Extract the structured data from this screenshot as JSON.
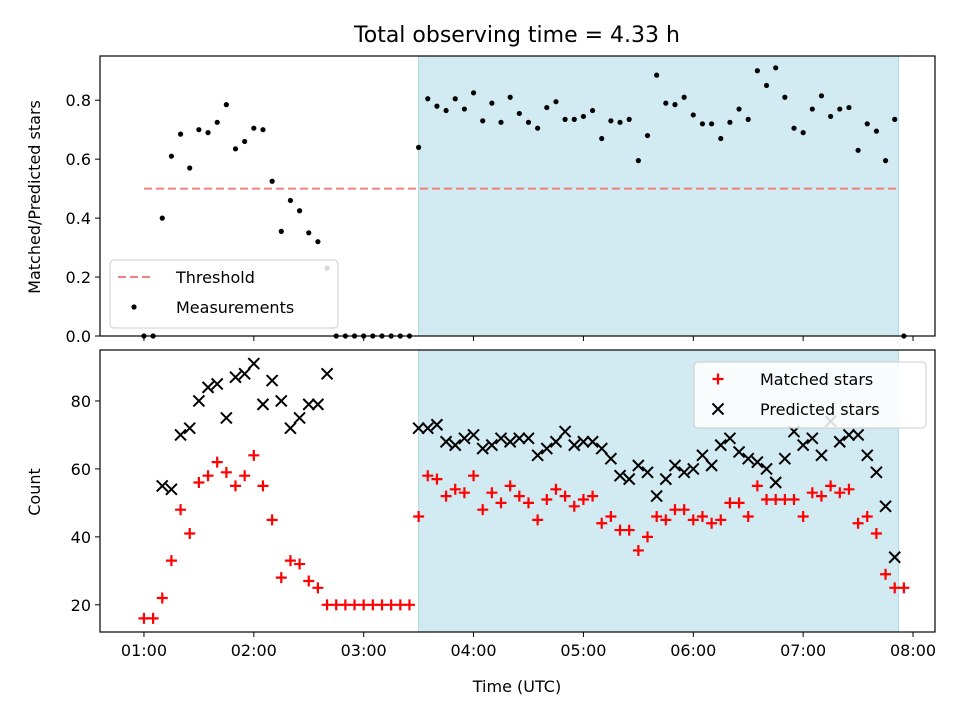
{
  "chart_data": [
    {
      "type": "scatter",
      "title": "Total observing time = 4.33 h",
      "ylabel": "Matched/Predicted stars",
      "xlabel": "",
      "ylim": [
        0,
        0.95
      ],
      "yticks": [
        0.0,
        0.2,
        0.4,
        0.6,
        0.8
      ],
      "ytick_labels": [
        "0.0",
        "0.2",
        "0.4",
        "0.6",
        "0.8"
      ],
      "shaded_interval": [
        "03:30",
        "07:52"
      ],
      "shade_color": "#add8e6",
      "legend_position": "lower-left",
      "threshold": {
        "name": "Threshold",
        "value": 0.5,
        "x_range": [
          "01:00",
          "07:52"
        ],
        "color": "#f08080"
      },
      "series": [
        {
          "name": "Measurements",
          "color": "#000000",
          "marker": "dot",
          "points": [
            [
              "01:00",
              0.0
            ],
            [
              "01:05",
              0.0
            ],
            [
              "01:10",
              0.4
            ],
            [
              "01:15",
              0.61
            ],
            [
              "01:20",
              0.685
            ],
            [
              "01:25",
              0.57
            ],
            [
              "01:30",
              0.7
            ],
            [
              "01:35",
              0.69
            ],
            [
              "01:40",
              0.725
            ],
            [
              "01:45",
              0.785
            ],
            [
              "01:50",
              0.635
            ],
            [
              "01:55",
              0.66
            ],
            [
              "02:00",
              0.705
            ],
            [
              "02:05",
              0.7
            ],
            [
              "02:10",
              0.525
            ],
            [
              "02:15",
              0.355
            ],
            [
              "02:20",
              0.46
            ],
            [
              "02:25",
              0.425
            ],
            [
              "02:30",
              0.35
            ],
            [
              "02:35",
              0.32
            ],
            [
              "02:40",
              0.23
            ],
            [
              "02:45",
              0.0
            ],
            [
              "02:50",
              0.0
            ],
            [
              "02:55",
              0.0
            ],
            [
              "03:00",
              0.0
            ],
            [
              "03:05",
              0.0
            ],
            [
              "03:10",
              0.0
            ],
            [
              "03:15",
              0.0
            ],
            [
              "03:20",
              0.0
            ],
            [
              "03:25",
              0.0
            ],
            [
              "03:30",
              0.64
            ],
            [
              "03:35",
              0.805
            ],
            [
              "03:40",
              0.78
            ],
            [
              "03:45",
              0.765
            ],
            [
              "03:50",
              0.805
            ],
            [
              "03:55",
              0.77
            ],
            [
              "04:00",
              0.825
            ],
            [
              "04:05",
              0.73
            ],
            [
              "04:10",
              0.79
            ],
            [
              "04:15",
              0.725
            ],
            [
              "04:20",
              0.81
            ],
            [
              "04:25",
              0.755
            ],
            [
              "04:30",
              0.725
            ],
            [
              "04:35",
              0.705
            ],
            [
              "04:40",
              0.775
            ],
            [
              "04:45",
              0.795
            ],
            [
              "04:50",
              0.735
            ],
            [
              "04:55",
              0.735
            ],
            [
              "05:00",
              0.745
            ],
            [
              "05:05",
              0.765
            ],
            [
              "05:10",
              0.67
            ],
            [
              "05:15",
              0.73
            ],
            [
              "05:20",
              0.725
            ],
            [
              "05:25",
              0.735
            ],
            [
              "05:30",
              0.595
            ],
            [
              "05:35",
              0.68
            ],
            [
              "05:40",
              0.885
            ],
            [
              "05:45",
              0.79
            ],
            [
              "05:50",
              0.785
            ],
            [
              "05:55",
              0.81
            ],
            [
              "06:00",
              0.75
            ],
            [
              "06:05",
              0.72
            ],
            [
              "06:10",
              0.72
            ],
            [
              "06:15",
              0.67
            ],
            [
              "06:20",
              0.725
            ],
            [
              "06:25",
              0.77
            ],
            [
              "06:30",
              0.735
            ],
            [
              "06:35",
              0.9
            ],
            [
              "06:40",
              0.85
            ],
            [
              "06:45",
              0.91
            ],
            [
              "06:50",
              0.81
            ],
            [
              "06:55",
              0.705
            ],
            [
              "07:00",
              0.69
            ],
            [
              "07:05",
              0.77
            ],
            [
              "07:10",
              0.815
            ],
            [
              "07:15",
              0.745
            ],
            [
              "07:20",
              0.77
            ],
            [
              "07:25",
              0.775
            ],
            [
              "07:30",
              0.63
            ],
            [
              "07:35",
              0.72
            ],
            [
              "07:40",
              0.695
            ],
            [
              "07:45",
              0.595
            ],
            [
              "07:50",
              0.735
            ],
            [
              "07:55",
              0.0
            ]
          ]
        }
      ]
    },
    {
      "type": "scatter",
      "xlabel": "Time (UTC)",
      "ylabel": "Count",
      "ylim": [
        12,
        95
      ],
      "yticks": [
        20,
        40,
        60,
        80
      ],
      "ytick_labels": [
        "20",
        "40",
        "60",
        "80"
      ],
      "xticks": [
        "01:00",
        "02:00",
        "03:00",
        "04:00",
        "05:00",
        "06:00",
        "07:00",
        "08:00"
      ],
      "shaded_interval": [
        "03:30",
        "07:52"
      ],
      "shade_color": "#add8e6",
      "legend_position": "top-right",
      "series": [
        {
          "name": "Matched stars",
          "color": "#ff0000",
          "marker": "plus",
          "points": [
            [
              "01:00",
              16
            ],
            [
              "01:05",
              16
            ],
            [
              "01:10",
              22
            ],
            [
              "01:15",
              33
            ],
            [
              "01:20",
              48
            ],
            [
              "01:25",
              41
            ],
            [
              "01:30",
              56
            ],
            [
              "01:35",
              58
            ],
            [
              "01:40",
              62
            ],
            [
              "01:45",
              59
            ],
            [
              "01:50",
              55
            ],
            [
              "01:55",
              58
            ],
            [
              "02:00",
              64
            ],
            [
              "02:05",
              55
            ],
            [
              "02:10",
              45
            ],
            [
              "02:15",
              28
            ],
            [
              "02:20",
              33
            ],
            [
              "02:25",
              32
            ],
            [
              "02:30",
              27
            ],
            [
              "02:35",
              25
            ],
            [
              "02:40",
              20
            ],
            [
              "02:45",
              20
            ],
            [
              "02:50",
              20
            ],
            [
              "02:55",
              20
            ],
            [
              "03:00",
              20
            ],
            [
              "03:05",
              20
            ],
            [
              "03:10",
              20
            ],
            [
              "03:15",
              20
            ],
            [
              "03:20",
              20
            ],
            [
              "03:25",
              20
            ],
            [
              "03:30",
              46
            ],
            [
              "03:35",
              58
            ],
            [
              "03:40",
              57
            ],
            [
              "03:45",
              52
            ],
            [
              "03:50",
              54
            ],
            [
              "03:55",
              53
            ],
            [
              "04:00",
              58
            ],
            [
              "04:05",
              48
            ],
            [
              "04:10",
              53
            ],
            [
              "04:15",
              50
            ],
            [
              "04:20",
              55
            ],
            [
              "04:25",
              52
            ],
            [
              "04:30",
              50
            ],
            [
              "04:35",
              45
            ],
            [
              "04:40",
              51
            ],
            [
              "04:45",
              54
            ],
            [
              "04:50",
              52
            ],
            [
              "04:55",
              49
            ],
            [
              "05:00",
              51
            ],
            [
              "05:05",
              52
            ],
            [
              "05:10",
              44
            ],
            [
              "05:15",
              46
            ],
            [
              "05:20",
              42
            ],
            [
              "05:25",
              42
            ],
            [
              "05:30",
              36
            ],
            [
              "05:35",
              40
            ],
            [
              "05:40",
              46
            ],
            [
              "05:45",
              45
            ],
            [
              "05:50",
              48
            ],
            [
              "05:55",
              48
            ],
            [
              "06:00",
              45
            ],
            [
              "06:05",
              46
            ],
            [
              "06:10",
              44
            ],
            [
              "06:15",
              45
            ],
            [
              "06:20",
              50
            ],
            [
              "06:25",
              50
            ],
            [
              "06:30",
              46
            ],
            [
              "06:35",
              55
            ],
            [
              "06:40",
              51
            ],
            [
              "06:45",
              51
            ],
            [
              "06:50",
              51
            ],
            [
              "06:55",
              51
            ],
            [
              "07:00",
              46
            ],
            [
              "07:05",
              53
            ],
            [
              "07:10",
              52
            ],
            [
              "07:15",
              55
            ],
            [
              "07:20",
              53
            ],
            [
              "07:25",
              54
            ],
            [
              "07:30",
              44
            ],
            [
              "07:35",
              46
            ],
            [
              "07:40",
              41
            ],
            [
              "07:45",
              29
            ],
            [
              "07:50",
              25
            ],
            [
              "07:55",
              25
            ]
          ]
        },
        {
          "name": "Predicted stars",
          "color": "#000000",
          "marker": "x",
          "points": [
            [
              "01:10",
              55
            ],
            [
              "01:15",
              54
            ],
            [
              "01:20",
              70
            ],
            [
              "01:25",
              72
            ],
            [
              "01:30",
              80
            ],
            [
              "01:35",
              84
            ],
            [
              "01:40",
              85
            ],
            [
              "01:45",
              75
            ],
            [
              "01:50",
              87
            ],
            [
              "01:55",
              88
            ],
            [
              "02:00",
              91
            ],
            [
              "02:05",
              79
            ],
            [
              "02:10",
              86
            ],
            [
              "02:15",
              80
            ],
            [
              "02:20",
              72
            ],
            [
              "02:25",
              75
            ],
            [
              "02:30",
              79
            ],
            [
              "02:35",
              79
            ],
            [
              "02:40",
              88
            ],
            [
              "03:30",
              72
            ],
            [
              "03:35",
              72
            ],
            [
              "03:40",
              73
            ],
            [
              "03:45",
              68
            ],
            [
              "03:50",
              67
            ],
            [
              "03:55",
              69
            ],
            [
              "04:00",
              70
            ],
            [
              "04:05",
              66
            ],
            [
              "04:10",
              67
            ],
            [
              "04:15",
              69
            ],
            [
              "04:20",
              68
            ],
            [
              "04:25",
              69
            ],
            [
              "04:30",
              69
            ],
            [
              "04:35",
              64
            ],
            [
              "04:40",
              66
            ],
            [
              "04:45",
              68
            ],
            [
              "04:50",
              71
            ],
            [
              "04:55",
              67
            ],
            [
              "05:00",
              68
            ],
            [
              "05:05",
              68
            ],
            [
              "05:10",
              66
            ],
            [
              "05:15",
              63
            ],
            [
              "05:20",
              58
            ],
            [
              "05:25",
              57
            ],
            [
              "05:30",
              61
            ],
            [
              "05:35",
              59
            ],
            [
              "05:40",
              52
            ],
            [
              "05:45",
              57
            ],
            [
              "05:50",
              61
            ],
            [
              "05:55",
              59
            ],
            [
              "06:00",
              60
            ],
            [
              "06:05",
              64
            ],
            [
              "06:10",
              61
            ],
            [
              "06:15",
              67
            ],
            [
              "06:20",
              69
            ],
            [
              "06:25",
              65
            ],
            [
              "06:30",
              63
            ],
            [
              "06:35",
              62
            ],
            [
              "06:40",
              60
            ],
            [
              "06:45",
              56
            ],
            [
              "06:50",
              63
            ],
            [
              "06:55",
              71
            ],
            [
              "07:00",
              67
            ],
            [
              "07:05",
              69
            ],
            [
              "07:10",
              64
            ],
            [
              "07:15",
              74
            ],
            [
              "07:20",
              68
            ],
            [
              "07:25",
              70
            ],
            [
              "07:30",
              70
            ],
            [
              "07:35",
              64
            ],
            [
              "07:40",
              59
            ],
            [
              "07:45",
              49
            ],
            [
              "07:50",
              34
            ]
          ]
        }
      ]
    }
  ]
}
